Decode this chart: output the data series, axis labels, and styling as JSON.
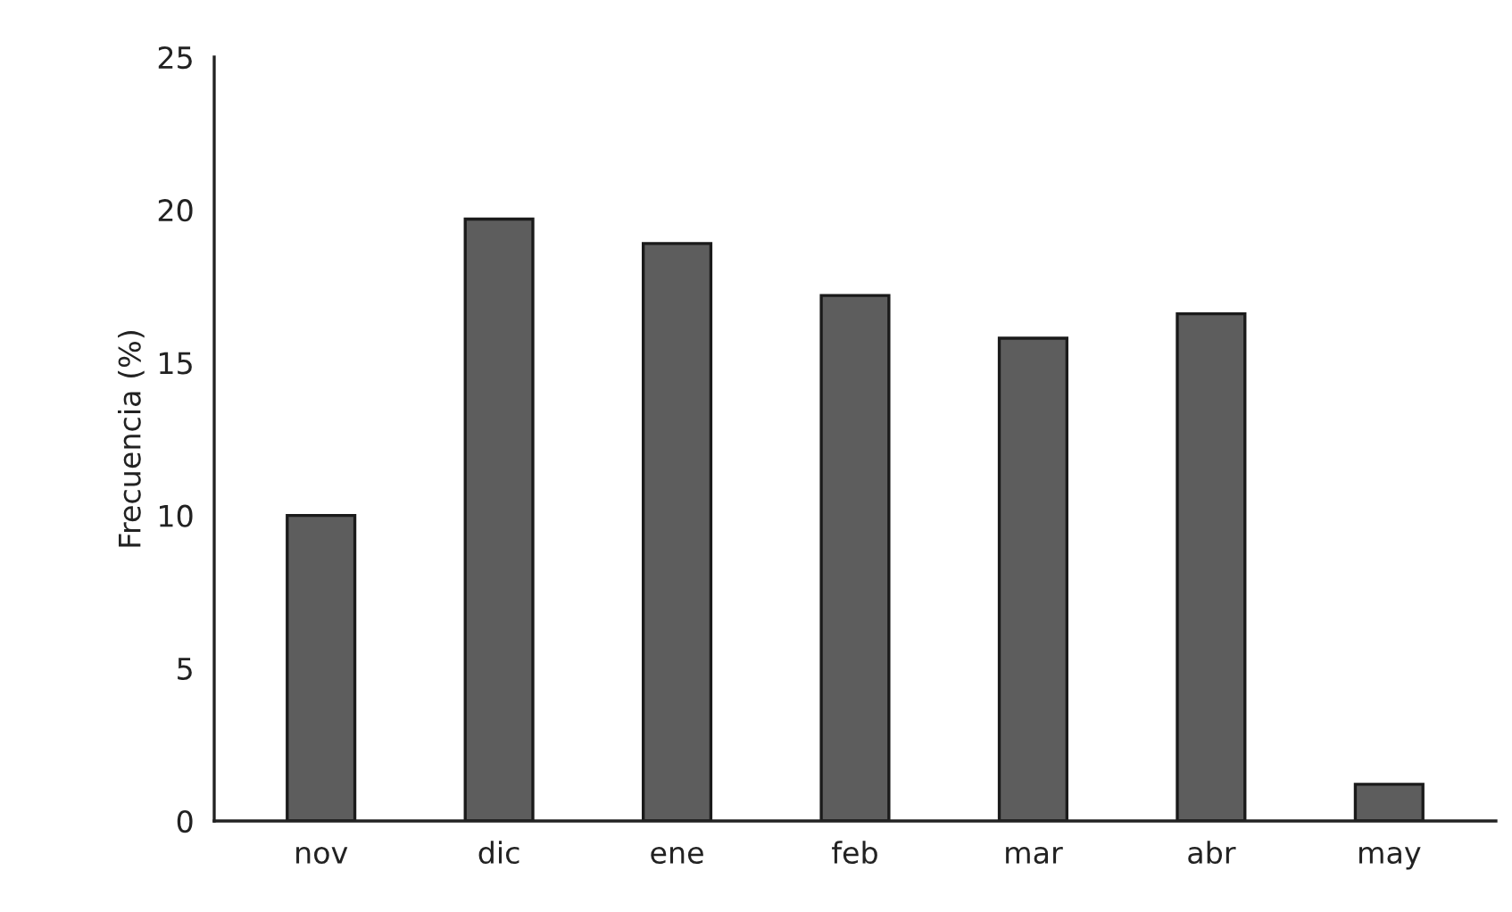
{
  "chart_data": {
    "type": "bar",
    "ylabel": "Frecuencia (%)",
    "categories": [
      "nov",
      "dic",
      "ene",
      "feb",
      "mar",
      "abr",
      "may"
    ],
    "values": [
      10.0,
      19.7,
      18.9,
      17.2,
      15.8,
      16.6,
      1.2
    ],
    "color": "#5d5d5d",
    "ylim": [
      0,
      25
    ],
    "yticks": [
      0,
      5,
      10,
      15,
      20,
      25
    ],
    "grid": false
  }
}
